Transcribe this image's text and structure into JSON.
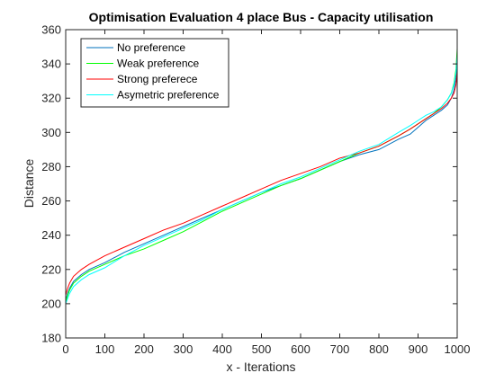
{
  "chart_data": {
    "type": "line",
    "title": "Optimisation Evaluation 4 place Bus - Capacity utilisation",
    "xlabel": "x - Iterations",
    "ylabel": "Distance",
    "xlim": [
      0,
      1000
    ],
    "ylim": [
      180,
      360
    ],
    "xticks": [
      0,
      100,
      200,
      300,
      400,
      500,
      600,
      700,
      800,
      900,
      1000
    ],
    "yticks": [
      180,
      200,
      220,
      240,
      260,
      280,
      300,
      320,
      340,
      360
    ],
    "grid": false,
    "legend_position": "top-left",
    "series": [
      {
        "name": "No preference",
        "color": "#0072BD",
        "x": [
          0,
          5,
          10,
          20,
          40,
          60,
          100,
          150,
          200,
          250,
          300,
          350,
          400,
          450,
          500,
          550,
          600,
          650,
          700,
          750,
          800,
          850,
          880,
          900,
          920,
          940,
          960,
          975,
          985,
          992,
          997,
          1000
        ],
        "y": [
          202,
          206,
          209,
          213,
          217,
          220,
          224,
          230,
          235,
          240,
          245,
          250,
          255,
          260,
          265,
          269,
          273,
          278,
          283,
          287,
          290,
          296,
          299,
          303,
          307,
          310,
          313,
          316,
          320,
          325,
          332,
          345
        ]
      },
      {
        "name": "Weak preference",
        "color": "#00FF00",
        "x": [
          0,
          5,
          10,
          20,
          40,
          60,
          100,
          150,
          200,
          250,
          300,
          350,
          400,
          450,
          500,
          550,
          600,
          650,
          700,
          750,
          800,
          850,
          880,
          900,
          920,
          940,
          960,
          975,
          985,
          992,
          997,
          1000
        ],
        "y": [
          201,
          205,
          208,
          212,
          216,
          219,
          223,
          228,
          232,
          237,
          242,
          248,
          254,
          259,
          264,
          269,
          273,
          278,
          283,
          288,
          292,
          298,
          302,
          305,
          308,
          311,
          315,
          319,
          323,
          329,
          337,
          349
        ]
      },
      {
        "name": "Strong preferece",
        "color": "#FF0000",
        "x": [
          0,
          5,
          10,
          20,
          40,
          60,
          100,
          150,
          200,
          250,
          300,
          350,
          400,
          450,
          500,
          550,
          600,
          650,
          700,
          750,
          800,
          850,
          880,
          900,
          920,
          940,
          960,
          975,
          985,
          992,
          997,
          1000
        ],
        "y": [
          205,
          209,
          212,
          216,
          220,
          223,
          228,
          233,
          238,
          243,
          247,
          252,
          257,
          262,
          267,
          272,
          276,
          280,
          285,
          288,
          292,
          298,
          302,
          305,
          308,
          311,
          314,
          317,
          320,
          323,
          328,
          336
        ]
      },
      {
        "name": "Asymetric preference",
        "color": "#00FFFF",
        "x": [
          0,
          5,
          10,
          20,
          40,
          60,
          100,
          150,
          200,
          250,
          300,
          350,
          400,
          450,
          500,
          550,
          600,
          650,
          700,
          750,
          800,
          850,
          880,
          900,
          920,
          940,
          960,
          975,
          985,
          992,
          997,
          1000
        ],
        "y": [
          200,
          203,
          206,
          210,
          214,
          217,
          221,
          228,
          234,
          239,
          244,
          249,
          255,
          260,
          265,
          270,
          274,
          279,
          284,
          289,
          293,
          300,
          304,
          307,
          310,
          312,
          315,
          319,
          323,
          328,
          335,
          345
        ]
      }
    ]
  }
}
